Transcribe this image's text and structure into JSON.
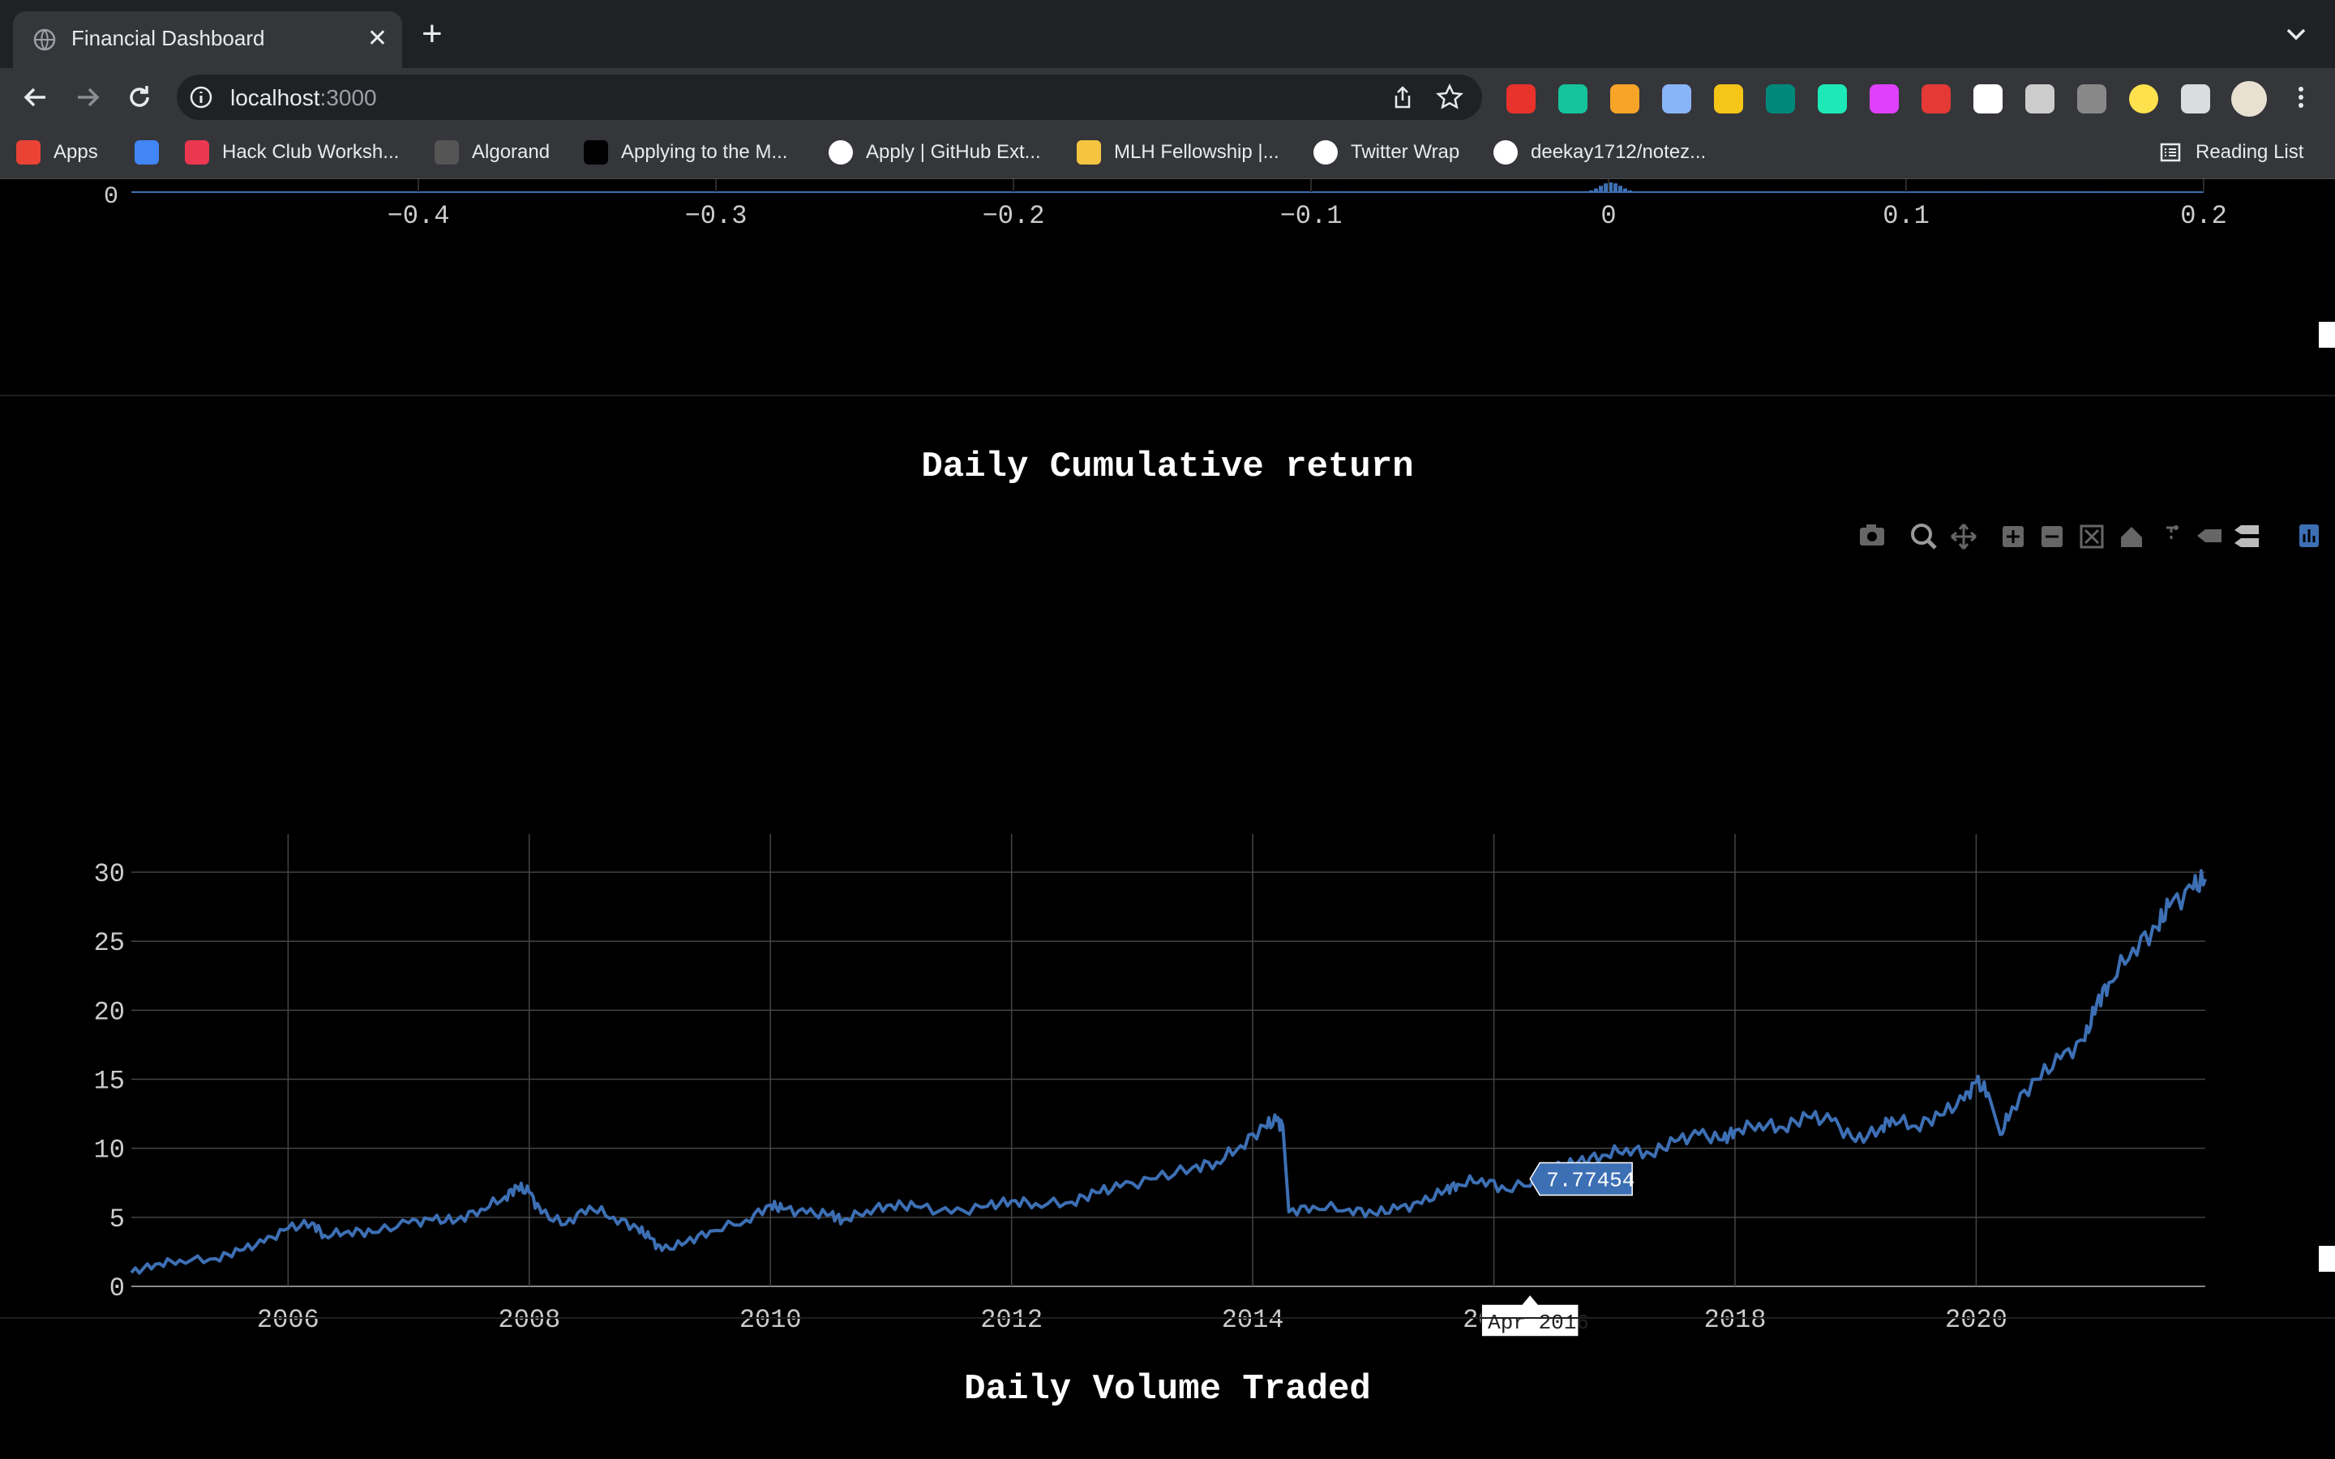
{
  "browser": {
    "tab_title": "Financial Dashboard",
    "url_host": "localhost",
    "url_port": ":3000",
    "bookmarks": [
      {
        "label": "Apps",
        "icon": "apps-grid-icon",
        "color": "#ea4335"
      },
      {
        "label": "",
        "icon": "google-cloud-icon",
        "color": "#4285f4"
      },
      {
        "label": "Hack Club Worksh...",
        "icon": "hack-club-icon",
        "color": "#ec3750"
      },
      {
        "label": "Algorand",
        "icon": "algorand-icon",
        "color": "#555555"
      },
      {
        "label": "Applying to the M...",
        "icon": "dev-icon",
        "color": "#000000"
      },
      {
        "label": "Apply | GitHub Ext...",
        "icon": "github-icon",
        "color": "#ffffff"
      },
      {
        "label": "MLH Fellowship |...",
        "icon": "mlh-icon",
        "color": "#f5c542"
      },
      {
        "label": "Twitter Wrap",
        "icon": "twitter-wrap-icon",
        "color": "#ffffff"
      },
      {
        "label": "deekay1712/notez...",
        "icon": "github-icon",
        "color": "#ffffff"
      }
    ],
    "reading_list_label": "Reading List",
    "extensions": [
      {
        "icon": "adblock-icon",
        "color": "#e8322c"
      },
      {
        "icon": "grammarly-icon",
        "color": "#15c39a"
      },
      {
        "icon": "extension-orange-icon",
        "color": "#f7a428"
      },
      {
        "icon": "shield-extension-icon",
        "color": "#8ab4f8"
      },
      {
        "icon": "sider-extension-icon",
        "color": "#f5c518"
      },
      {
        "icon": "meet-extension-icon",
        "color": "#00897b"
      },
      {
        "icon": "bookmark-extension-icon",
        "color": "#1de9b6"
      },
      {
        "icon": "color-picker-icon",
        "color": "#e040fb"
      },
      {
        "icon": "red-extension-icon",
        "color": "#e53935"
      },
      {
        "icon": "panda-extension-icon",
        "color": "#ffffff"
      },
      {
        "icon": "person-desk-icon",
        "color": "#cccccc"
      },
      {
        "icon": "cart-extension-icon",
        "color": "#888888"
      },
      {
        "icon": "yellow-circle-icon",
        "color": "#ffe14d"
      },
      {
        "icon": "puzzle-icon",
        "color": "#dadce0"
      }
    ]
  },
  "top_chart": {
    "x_ticks": [
      "−0.4",
      "−0.3",
      "−0.2",
      "−0.1",
      "0",
      "0.1",
      "0.2"
    ],
    "y_tick": "0",
    "bar_color": "#3d6fb4"
  },
  "page": {
    "cumulative_title": "Daily Cumulative return",
    "volume_title": "Daily Volume Traded"
  },
  "chart_data": {
    "type": "line",
    "title": "Daily Cumulative return",
    "line_color": "#3d6fb4",
    "ylim": [
      0,
      31
    ],
    "xlim": [
      2004.7,
      2021.9
    ],
    "x_ticks": [
      2006,
      2008,
      2010,
      2012,
      2014,
      2016,
      2018,
      2020
    ],
    "x_tick_labels": [
      "2006",
      "2008",
      "2010",
      "2012",
      "2014",
      "2016",
      "2018",
      "2020"
    ],
    "y_ticks": [
      0,
      5,
      10,
      15,
      20,
      25,
      30
    ],
    "y_tick_labels": [
      "0",
      "5",
      "10",
      "15",
      "20",
      "25",
      "30"
    ],
    "grid": true,
    "series": [
      {
        "x": [
          2004.7,
          2004.9,
          2005.1,
          2005.4,
          2005.6,
          2005.8,
          2006.0,
          2006.2,
          2006.3,
          2006.5,
          2006.7,
          2007.0,
          2007.2,
          2007.4,
          2007.6,
          2007.8,
          2007.9,
          2008.0,
          2008.1,
          2008.3,
          2008.5,
          2008.7,
          2008.9,
          2009.0,
          2009.1,
          2009.3,
          2009.5,
          2009.8,
          2010.0,
          2010.1,
          2010.3,
          2010.5,
          2010.6,
          2010.8,
          2011.0,
          2011.2,
          2011.5,
          2011.8,
          2012.0,
          2012.2,
          2012.5,
          2012.7,
          2012.9,
          2013.2,
          2013.5,
          2013.7,
          2013.9,
          2014.1,
          2014.2,
          2014.25,
          2014.3,
          2014.5,
          2014.8,
          2015.0,
          2015.2,
          2015.4,
          2015.6,
          2015.7,
          2015.9,
          2016.1,
          2016.4,
          2016.5,
          2016.7,
          2016.9,
          2017.1,
          2017.3,
          2017.5,
          2017.7,
          2017.9,
          2018.0,
          2018.2,
          2018.4,
          2018.6,
          2018.8,
          2019.0,
          2019.2,
          2019.3,
          2019.5,
          2019.7,
          2019.9,
          2020.0,
          2020.1,
          2020.2,
          2020.3,
          2020.5,
          2020.7,
          2020.9,
          2021.0,
          2021.1,
          2021.3,
          2021.5,
          2021.6,
          2021.8,
          2021.9
        ],
        "y": [
          1.0,
          1.6,
          1.9,
          2.0,
          2.6,
          3.2,
          4.2,
          4.6,
          3.7,
          4.0,
          3.9,
          4.6,
          4.8,
          4.8,
          5.6,
          6.5,
          7.2,
          6.8,
          5.3,
          4.5,
          5.8,
          5.0,
          4.2,
          3.5,
          2.6,
          3.2,
          4.0,
          4.8,
          5.9,
          5.6,
          5.3,
          5.2,
          4.8,
          5.5,
          5.9,
          5.8,
          5.3,
          5.8,
          6.2,
          6.0,
          6.1,
          6.8,
          7.2,
          7.8,
          8.6,
          9.0,
          10.2,
          11.6,
          12.0,
          11.6,
          5.4,
          5.8,
          5.6,
          5.3,
          5.6,
          6.0,
          7.0,
          7.4,
          7.8,
          7.0,
          7.78,
          8.5,
          9.0,
          9.5,
          10.0,
          9.6,
          10.5,
          11.0,
          10.6,
          11.3,
          11.8,
          11.5,
          12.3,
          12.0,
          10.5,
          11.4,
          12.2,
          11.6,
          12.4,
          13.5,
          14.8,
          14.0,
          11.0,
          13.0,
          15.0,
          16.5,
          17.8,
          20.5,
          22.0,
          24.5,
          26.0,
          27.5,
          28.8,
          29.5
        ]
      }
    ],
    "hover": {
      "x_label": "Apr 2016",
      "y_label": "7.77454"
    }
  }
}
